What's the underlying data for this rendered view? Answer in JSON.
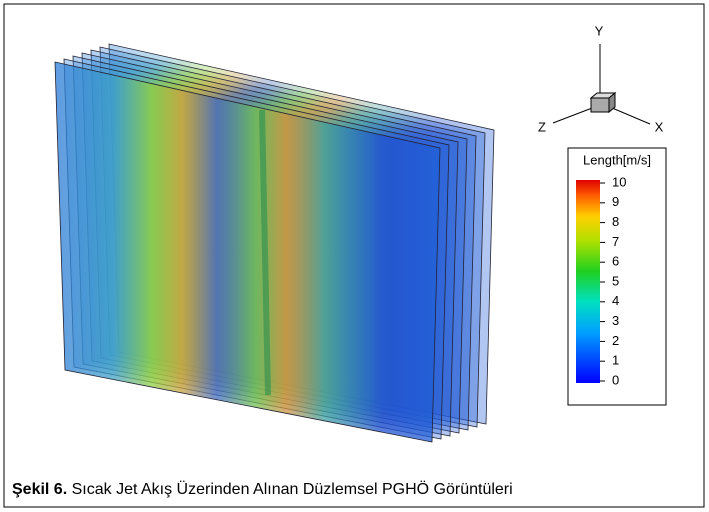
{
  "figure": {
    "axes": {
      "y": "Y",
      "z": "Z",
      "x": "X"
    },
    "colorbar": {
      "title": "Length[m/s]",
      "range": [
        0,
        10
      ],
      "ticks": [
        0,
        1,
        2,
        3,
        4,
        5,
        6,
        7,
        8,
        9,
        10
      ]
    },
    "caption": {
      "label": "Şekil 6.",
      "text": "Sıcak Jet Akış Üzerinden Alınan Düzlemsel PGHÖ Görüntüleri"
    }
  }
}
